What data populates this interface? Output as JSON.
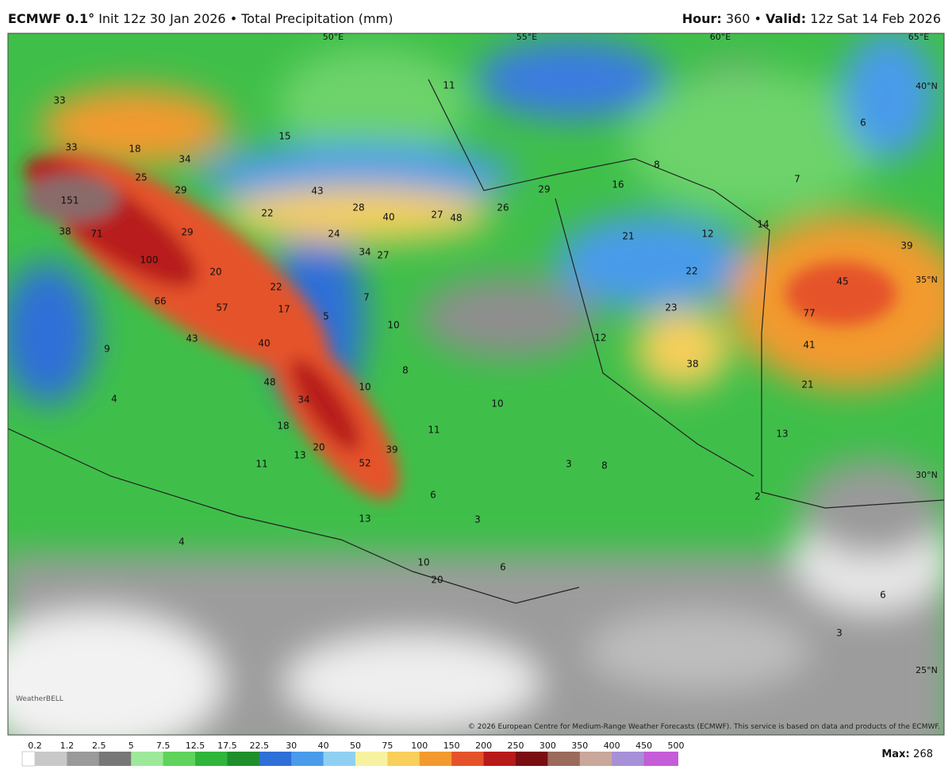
{
  "header": {
    "model": "ECMWF 0.1°",
    "init": "Init 12z 30 Jan 2026",
    "separator": "•",
    "field": "Total Precipitation (mm)",
    "hour_label": "Hour:",
    "hour_value": "360",
    "valid_label": "Valid:",
    "valid_value": "12z Sat 14 Feb 2026"
  },
  "map": {
    "grid_labels": [
      "50°E",
      "55°E",
      "60°E",
      "65°E",
      "40°N",
      "35°N",
      "30°N",
      "25°N"
    ],
    "values": [
      33,
      33,
      151,
      38,
      71,
      100,
      66,
      57,
      43,
      40,
      48,
      34,
      20,
      52,
      39,
      18,
      13,
      11,
      13,
      6,
      3,
      3,
      8,
      10,
      8,
      10,
      11,
      10,
      5,
      7,
      22,
      20,
      29,
      22,
      24,
      34,
      27,
      43,
      28,
      40,
      27,
      48,
      26,
      29,
      16,
      8,
      21,
      12,
      14,
      22,
      23,
      12,
      38,
      77,
      41,
      21,
      39,
      45,
      7,
      6,
      11,
      15,
      18,
      34,
      29,
      25,
      17,
      9,
      4,
      4,
      6,
      6,
      3,
      2,
      13,
      10,
      20
    ],
    "logo": "WeatherBELL",
    "copyright": "© 2026 European Centre for Medium-Range Weather Forecasts (ECMWF). This service is based on data and products of the ECMWF."
  },
  "colorbar": {
    "labels": [
      0.2,
      1.2,
      2.5,
      5,
      7.5,
      12.5,
      17.5,
      22.5,
      30,
      40,
      50,
      75,
      100,
      150,
      200,
      250,
      300,
      350,
      400,
      450,
      500
    ],
    "colors": [
      "#c8c8c8",
      "#9a9a9a",
      "#777777",
      "#9ee89a",
      "#5fd35c",
      "#2fb53a",
      "#1f8f2c",
      "#2f6fd8",
      "#4a9bea",
      "#8fd0f2",
      "#f7f2a0",
      "#f7cf5a",
      "#f29a2e",
      "#e5522a",
      "#b81a1a",
      "#7a0e10",
      "#9a6a5a",
      "#c9a79a",
      "#a690d8",
      "#c55cd8"
    ],
    "max_label": "Max:",
    "max_value": 268
  }
}
